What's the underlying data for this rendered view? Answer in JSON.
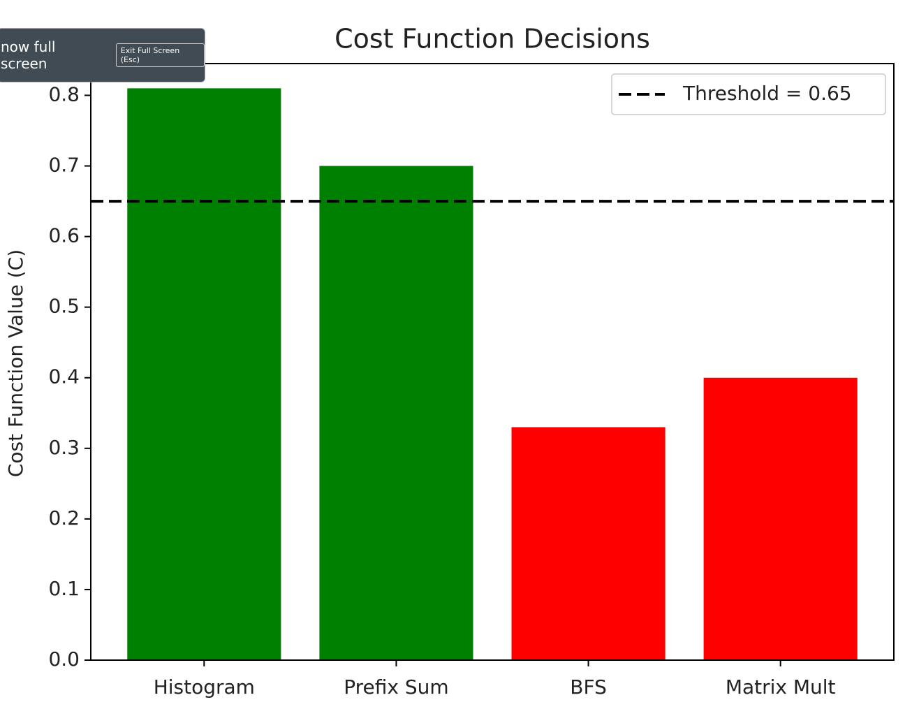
{
  "overlay": {
    "message": "now full screen",
    "button": "Exit Full Screen (Esc)"
  },
  "chart_data": {
    "type": "bar",
    "title": "Cost Function Decisions",
    "y_label": "Cost Function Value (C)",
    "categories": [
      "Histogram",
      "Prefix Sum",
      "BFS",
      "Matrix Mult"
    ],
    "values": [
      0.81,
      0.7,
      0.33,
      0.4
    ],
    "colors": [
      "#008000",
      "#008000",
      "#ff0000",
      "#ff0000"
    ],
    "threshold": {
      "value": 0.65,
      "label": "Threshold = 0.65",
      "color": "#000000"
    },
    "ylim": [
      0,
      0.845
    ],
    "yticks": [
      {
        "value": 0,
        "label": "0.0"
      },
      0.1,
      0.2,
      0.3,
      0.4,
      0.5,
      0.6,
      0.7,
      0.8
    ],
    "legend": "upper right",
    "grid": false
  }
}
